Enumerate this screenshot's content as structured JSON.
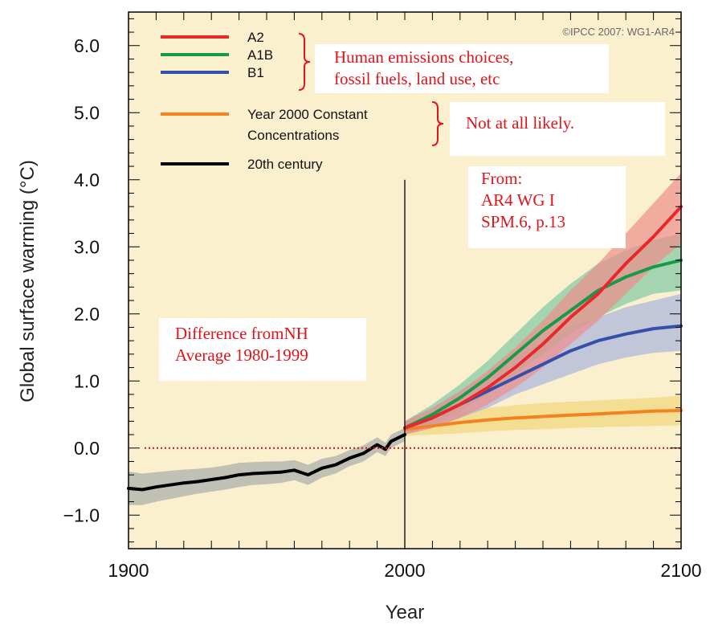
{
  "chart_data": {
    "type": "line",
    "title": "",
    "xlabel": "Year",
    "ylabel": "Global surface warming (°C)",
    "xlim": [
      1900,
      2100
    ],
    "ylim": [
      -1.5,
      6.5
    ],
    "x_ticks": [
      1900,
      2000,
      2100
    ],
    "x_tick_labels": [
      "1900",
      "2000",
      "2100"
    ],
    "y_ticks": [
      -1.0,
      0.0,
      1.0,
      2.0,
      3.0,
      4.0,
      5.0,
      6.0
    ],
    "y_tick_labels": [
      "−1.0",
      "0.0",
      "1.0",
      "2.0",
      "3.0",
      "4.0",
      "5.0",
      "6.0"
    ],
    "grid": false,
    "legend_position": "top-left",
    "credit": "©IPCC  2007: WG1-AR4",
    "vertical_line_x": 2000,
    "zero_line_y": 0.0,
    "series": [
      {
        "name": "A2",
        "color": "#e8282b",
        "band_color": "#ee8f8c",
        "x": [
          2000,
          2010,
          2020,
          2030,
          2040,
          2050,
          2060,
          2070,
          2080,
          2090,
          2100
        ],
        "values": [
          0.3,
          0.45,
          0.65,
          0.9,
          1.2,
          1.55,
          1.95,
          2.3,
          2.75,
          3.15,
          3.6
        ],
        "lower": [
          0.2,
          0.3,
          0.45,
          0.65,
          0.9,
          1.2,
          1.55,
          1.9,
          2.3,
          2.7,
          3.05
        ],
        "upper": [
          0.4,
          0.6,
          0.85,
          1.15,
          1.5,
          1.9,
          2.35,
          2.75,
          3.2,
          3.65,
          4.1
        ]
      },
      {
        "name": "A1B",
        "color": "#189a4b",
        "band_color": "#7fc7a4",
        "x": [
          2000,
          2010,
          2020,
          2030,
          2040,
          2050,
          2060,
          2070,
          2080,
          2090,
          2100
        ],
        "values": [
          0.3,
          0.5,
          0.75,
          1.05,
          1.4,
          1.75,
          2.05,
          2.35,
          2.55,
          2.7,
          2.8
        ],
        "lower": [
          0.2,
          0.35,
          0.55,
          0.8,
          1.1,
          1.4,
          1.7,
          1.95,
          2.15,
          2.3,
          2.35
        ],
        "upper": [
          0.4,
          0.65,
          0.95,
          1.3,
          1.7,
          2.1,
          2.45,
          2.75,
          2.95,
          3.1,
          3.2
        ]
      },
      {
        "name": "B1",
        "color": "#3450a8",
        "band_color": "#aab4de",
        "x": [
          2000,
          2010,
          2020,
          2030,
          2040,
          2050,
          2060,
          2070,
          2080,
          2090,
          2100
        ],
        "values": [
          0.3,
          0.45,
          0.65,
          0.85,
          1.05,
          1.25,
          1.45,
          1.6,
          1.7,
          1.78,
          1.82
        ],
        "lower": [
          0.2,
          0.3,
          0.45,
          0.6,
          0.8,
          0.95,
          1.1,
          1.25,
          1.35,
          1.42,
          1.45
        ],
        "upper": [
          0.4,
          0.6,
          0.85,
          1.1,
          1.35,
          1.6,
          1.8,
          1.95,
          2.1,
          2.2,
          2.3
        ]
      },
      {
        "name": "Year 2000 Constant Concentrations",
        "color": "#f58220",
        "band_color": "#f0d67a",
        "x": [
          2000,
          2010,
          2020,
          2030,
          2040,
          2050,
          2060,
          2070,
          2080,
          2090,
          2100
        ],
        "values": [
          0.28,
          0.33,
          0.38,
          0.42,
          0.45,
          0.47,
          0.49,
          0.51,
          0.53,
          0.55,
          0.56
        ],
        "lower": [
          0.18,
          0.2,
          0.22,
          0.25,
          0.27,
          0.28,
          0.3,
          0.31,
          0.32,
          0.33,
          0.34
        ],
        "upper": [
          0.38,
          0.46,
          0.55,
          0.6,
          0.64,
          0.67,
          0.69,
          0.71,
          0.73,
          0.75,
          0.78
        ]
      },
      {
        "name": "20th century",
        "color": "#000000",
        "band_color": "#a8abab",
        "x": [
          1900,
          1905,
          1910,
          1915,
          1920,
          1925,
          1930,
          1935,
          1940,
          1945,
          1950,
          1955,
          1960,
          1965,
          1970,
          1975,
          1980,
          1985,
          1990,
          1993,
          1995,
          2000
        ],
        "values": [
          -0.6,
          -0.62,
          -0.58,
          -0.55,
          -0.52,
          -0.5,
          -0.47,
          -0.44,
          -0.4,
          -0.38,
          -0.37,
          -0.36,
          -0.33,
          -0.4,
          -0.3,
          -0.25,
          -0.15,
          -0.08,
          0.05,
          -0.02,
          0.1,
          0.2
        ],
        "lower": [
          -0.85,
          -0.85,
          -0.8,
          -0.76,
          -0.72,
          -0.68,
          -0.65,
          -0.62,
          -0.58,
          -0.55,
          -0.54,
          -0.52,
          -0.48,
          -0.55,
          -0.44,
          -0.38,
          -0.27,
          -0.2,
          -0.06,
          -0.12,
          0.0,
          0.1
        ],
        "upper": [
          -0.35,
          -0.38,
          -0.36,
          -0.34,
          -0.32,
          -0.31,
          -0.29,
          -0.26,
          -0.22,
          -0.21,
          -0.2,
          -0.2,
          -0.18,
          -0.25,
          -0.16,
          -0.12,
          -0.03,
          0.04,
          0.16,
          0.08,
          0.2,
          0.3
        ]
      }
    ],
    "legend_entries": [
      "A2",
      "A1B",
      "B1",
      "Year 2000 Constant",
      "Concentrations",
      "20th century"
    ],
    "annotations": {
      "emissions": "Human emissions choices,\nfossil fuels, land use, etc",
      "not_likely": "Not at all likely.",
      "source": "From:\nAR4 WG I\nSPM.6, p.13",
      "difference": "Difference fromNH\nAverage 1980-1999"
    },
    "colors": {
      "plot_background": "#fbf0ce",
      "annotation_text": "#e0141b",
      "zero_line": "#d4141b"
    }
  }
}
